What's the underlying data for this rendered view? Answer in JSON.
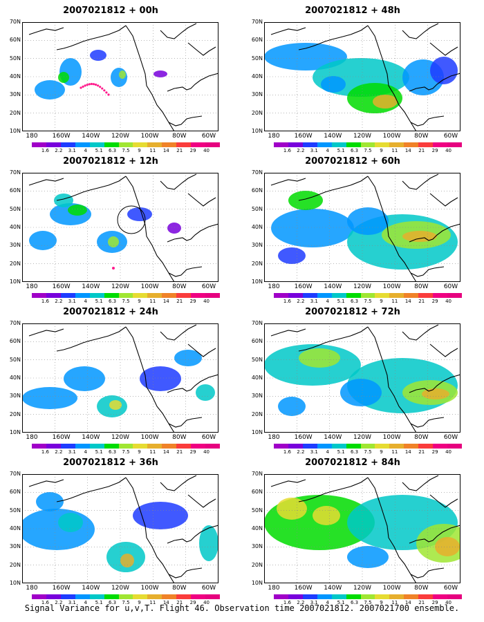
{
  "panels": [
    {
      "title": "2007021812 + 00h"
    },
    {
      "title": "2007021812 + 12h"
    },
    {
      "title": "2007021812 + 24h"
    },
    {
      "title": "2007021812 + 36h"
    },
    {
      "title": "2007021812 + 48h"
    },
    {
      "title": "2007021812 + 60h"
    },
    {
      "title": "2007021812 + 72h"
    },
    {
      "title": "2007021812 + 84h"
    }
  ],
  "axes": {
    "lat_labels": [
      "70N",
      "60N",
      "50N",
      "40N",
      "30N",
      "20N",
      "10N"
    ],
    "lon_labels": [
      "180",
      "160W",
      "140W",
      "120W",
      "100W",
      "80W",
      "60W"
    ]
  },
  "colorbar": {
    "labels": [
      "1.6",
      "2.2",
      "3.1",
      "4",
      "5.1",
      "6.3",
      "7.5",
      "9",
      "11",
      "14",
      "21",
      "29",
      "40"
    ],
    "colors": [
      "#a000c8",
      "#7800dc",
      "#1e3cff",
      "#0096ff",
      "#00c8c8",
      "#00dc00",
      "#a0e632",
      "#e6dc32",
      "#e6af2d",
      "#f08228",
      "#fa3c3c",
      "#f00082",
      "#e6007f"
    ]
  },
  "caption": "Signal Variance for u,v,T. Flight 46. Observation time 2007021812. 2007021700 ensemble."
}
